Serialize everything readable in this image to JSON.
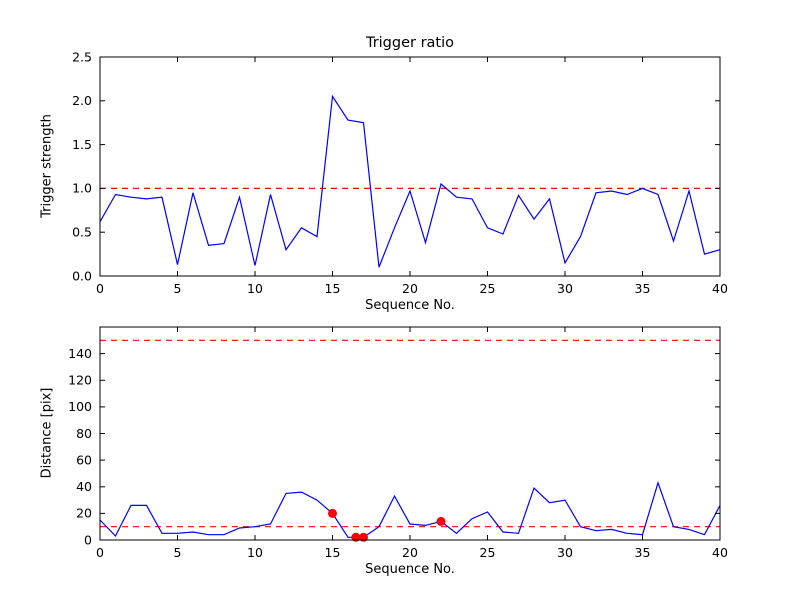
{
  "figure": {
    "background": "#ffffff",
    "axes_color": "#000000",
    "series_color": "#0000ff",
    "threshold_color": "#ff0000",
    "marker_color": "#ff0000"
  },
  "chart_data": [
    {
      "type": "line",
      "title": "Trigger ratio",
      "xlabel": "Sequence No.",
      "ylabel": "Trigger strength",
      "grid": false,
      "legend": null,
      "xlim": [
        0,
        40
      ],
      "ylim": [
        0.0,
        2.5
      ],
      "xticks": [
        0,
        5,
        10,
        15,
        20,
        25,
        30,
        35,
        40
      ],
      "xtick_labels": [
        "0",
        "5",
        "10",
        "15",
        "20",
        "25",
        "30",
        "35",
        "40"
      ],
      "yticks": [
        0.0,
        0.5,
        1.0,
        1.5,
        2.0,
        2.5
      ],
      "ytick_labels": [
        "0.0",
        "0.5",
        "1.0",
        "1.5",
        "2.0",
        "2.5"
      ],
      "x": [
        0,
        1,
        2,
        3,
        4,
        5,
        6,
        7,
        8,
        9,
        10,
        11,
        12,
        13,
        14,
        15,
        16,
        17,
        18,
        19,
        20,
        21,
        22,
        23,
        24,
        25,
        26,
        27,
        28,
        29,
        30,
        31,
        32,
        33,
        34,
        35,
        36,
        37,
        38,
        39,
        40
      ],
      "values": [
        0.62,
        0.93,
        0.9,
        0.88,
        0.9,
        0.13,
        0.95,
        0.35,
        0.37,
        0.9,
        0.12,
        0.93,
        0.3,
        0.55,
        0.45,
        2.05,
        1.78,
        1.75,
        0.1,
        0.55,
        0.97,
        0.38,
        1.05,
        0.9,
        0.88,
        0.55,
        0.48,
        0.92,
        0.65,
        0.88,
        0.15,
        0.45,
        0.95,
        0.97,
        0.93,
        1.0,
        0.93,
        0.4,
        0.97,
        0.25,
        0.3
      ],
      "thresholds": [
        1.0
      ],
      "markers": []
    },
    {
      "type": "line",
      "title": "",
      "xlabel": "Sequence No.",
      "ylabel": "Distance [pix]",
      "grid": false,
      "legend": null,
      "xlim": [
        0,
        40
      ],
      "ylim": [
        0,
        160
      ],
      "xticks": [
        0,
        5,
        10,
        15,
        20,
        25,
        30,
        35,
        40
      ],
      "xtick_labels": [
        "0",
        "5",
        "10",
        "15",
        "20",
        "25",
        "30",
        "35",
        "40"
      ],
      "yticks": [
        0,
        20,
        40,
        60,
        80,
        100,
        120,
        140
      ],
      "ytick_labels": [
        "0",
        "20",
        "40",
        "60",
        "80",
        "100",
        "120",
        "140"
      ],
      "x": [
        0,
        1,
        2,
        3,
        4,
        5,
        6,
        7,
        8,
        9,
        10,
        11,
        12,
        13,
        14,
        15,
        16,
        17,
        18,
        19,
        20,
        21,
        22,
        23,
        24,
        25,
        26,
        27,
        28,
        29,
        30,
        31,
        32,
        33,
        34,
        35,
        36,
        37,
        38,
        39,
        40
      ],
      "values": [
        15,
        3,
        26,
        26,
        5,
        5,
        6,
        4,
        4,
        9,
        10,
        12,
        35,
        36,
        30,
        20,
        2,
        2,
        10,
        33,
        12,
        11,
        14,
        5,
        16,
        21,
        6,
        5,
        39,
        28,
        30,
        10,
        7,
        8,
        5,
        4,
        43,
        10,
        8,
        4,
        26
      ],
      "thresholds": [
        150,
        10
      ],
      "markers": [
        {
          "x": 15,
          "y": 20
        },
        {
          "x": 16.5,
          "y": 2
        },
        {
          "x": 17,
          "y": 2
        },
        {
          "x": 22,
          "y": 14
        }
      ]
    }
  ]
}
